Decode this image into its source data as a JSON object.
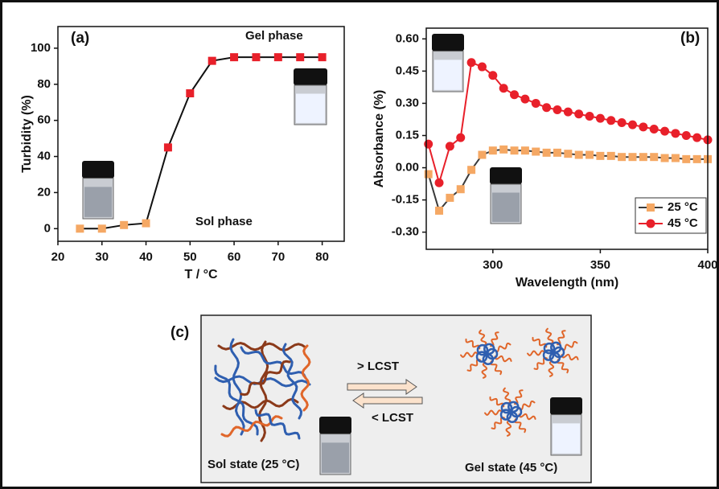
{
  "chart_data": [
    {
      "type": "line",
      "title": "(a)",
      "xlabel": "T / °C",
      "ylabel": "Turbidity (%)",
      "x": [
        25,
        30,
        35,
        40,
        45,
        50,
        55,
        60,
        65,
        70,
        75,
        80
      ],
      "values": [
        0,
        0,
        2,
        3,
        45,
        75,
        93,
        95,
        95,
        95,
        95,
        95
      ],
      "marker_colors": [
        "#f5a864",
        "#f5a864",
        "#f5a864",
        "#f5a864",
        "#e8202a",
        "#e8202a",
        "#e8202a",
        "#e8202a",
        "#e8202a",
        "#e8202a",
        "#e8202a",
        "#e8202a"
      ],
      "line_color": "#111111",
      "marker": "square",
      "annotations": [
        "Gel phase",
        "Sol phase"
      ],
      "xlim": [
        20,
        85
      ],
      "xticks": [
        20,
        30,
        40,
        50,
        60,
        70,
        80
      ],
      "ylim": [
        -7,
        112
      ],
      "yticks": [
        0,
        20,
        40,
        60,
        80,
        100
      ]
    },
    {
      "type": "line",
      "title": "(b)",
      "xlabel": "Wavelength (nm)",
      "ylabel": "Absorbance (%)",
      "x": [
        270,
        275,
        280,
        285,
        290,
        295,
        300,
        305,
        310,
        315,
        320,
        325,
        330,
        335,
        340,
        345,
        350,
        355,
        360,
        365,
        370,
        375,
        380,
        385,
        390,
        395,
        400
      ],
      "series": [
        {
          "name": "25 °C",
          "color": "#f5a864",
          "line_color": "#3a3a3a",
          "marker": "square",
          "values": [
            -0.03,
            -0.2,
            -0.14,
            -0.1,
            -0.01,
            0.06,
            0.08,
            0.085,
            0.08,
            0.08,
            0.075,
            0.07,
            0.07,
            0.065,
            0.06,
            0.06,
            0.055,
            0.055,
            0.05,
            0.05,
            0.05,
            0.05,
            0.045,
            0.045,
            0.04,
            0.04,
            0.04
          ]
        },
        {
          "name": "45 °C",
          "color": "#e8202a",
          "line_color": "#e8202a",
          "marker": "circle",
          "values": [
            0.11,
            -0.07,
            0.1,
            0.14,
            0.49,
            0.47,
            0.43,
            0.37,
            0.34,
            0.32,
            0.3,
            0.28,
            0.27,
            0.26,
            0.25,
            0.24,
            0.23,
            0.22,
            0.21,
            0.2,
            0.19,
            0.18,
            0.17,
            0.16,
            0.15,
            0.14,
            0.13
          ]
        }
      ],
      "legend": "lower right",
      "xlim": [
        269,
        400
      ],
      "xticks": [
        300,
        350,
        400
      ],
      "ylim": [
        -0.38,
        0.65
      ],
      "yticks": [
        {
          "value": -0.3,
          "label": "-0.30"
        },
        {
          "value": -0.15,
          "label": "-0.15"
        },
        {
          "value": 0,
          "label": "0.00"
        },
        {
          "value": 0.15,
          "label": "0.15"
        },
        {
          "value": 0.3,
          "label": "0.30"
        },
        {
          "value": 0.45,
          "label": "0.45"
        },
        {
          "value": 0.6,
          "label": "0.60"
        }
      ]
    }
  ],
  "diagram": {
    "label": "(c)",
    "forward": "> LCST",
    "backward": "< LCST",
    "sol_state": "Sol state (25 °C)",
    "gel_state": "Gel state (45 °C)"
  }
}
